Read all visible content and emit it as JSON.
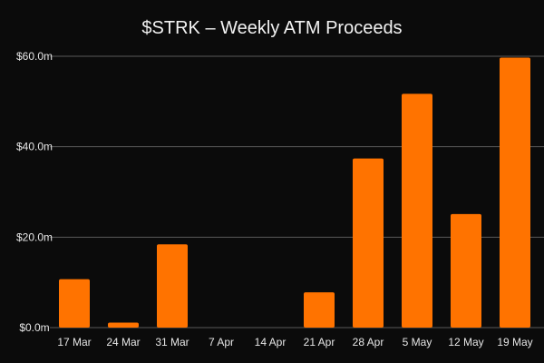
{
  "chart_data": {
    "type": "bar",
    "title": "$STRK – Weekly ATM Proceeds",
    "xlabel": "",
    "ylabel": "",
    "categories": [
      "17 Mar",
      "24 Mar",
      "31 Mar",
      "7 Apr",
      "14 Apr",
      "21 Apr",
      "28 Apr",
      "5 May",
      "12 May",
      "19 May"
    ],
    "values": [
      10.7,
      1.1,
      18.4,
      0,
      0,
      7.8,
      37.4,
      51.7,
      25.1,
      59.7
    ],
    "ylim": [
      0,
      60
    ],
    "yticks": [
      0,
      20,
      40,
      60
    ],
    "ytick_labels": [
      "$0.0m",
      "$20.0m",
      "$40.0m",
      "$60.0m"
    ],
    "grid": true,
    "bar_color": "#ff7300",
    "background_color": "#0b0b0b"
  }
}
